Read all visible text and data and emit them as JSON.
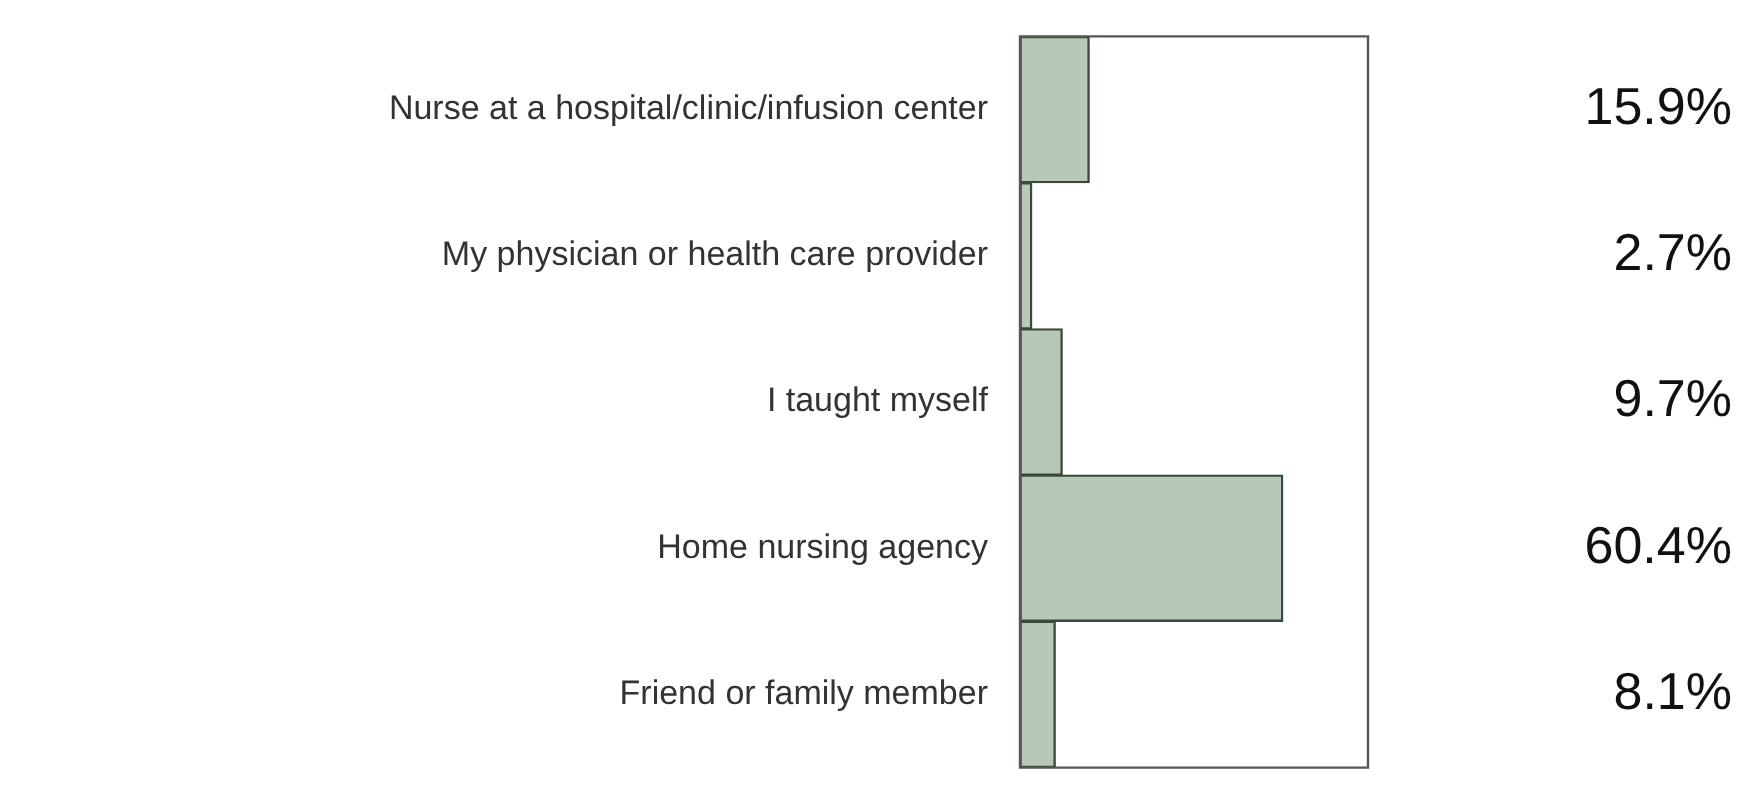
{
  "chart_data": {
    "type": "bar",
    "orientation": "horizontal",
    "categories": [
      "Nurse at a hospital/clinic/infusion center",
      "My physician or health care provider",
      "I taught myself",
      "Home nursing agency",
      "Friend or family member"
    ],
    "values": [
      15.9,
      2.7,
      9.7,
      60.4,
      8.1
    ],
    "value_labels": [
      "15.9%",
      "2.7%",
      "9.7%",
      "60.4%",
      "8.1%"
    ],
    "color": "#b8c8b8",
    "legend": false,
    "tick_labels": "y"
  }
}
